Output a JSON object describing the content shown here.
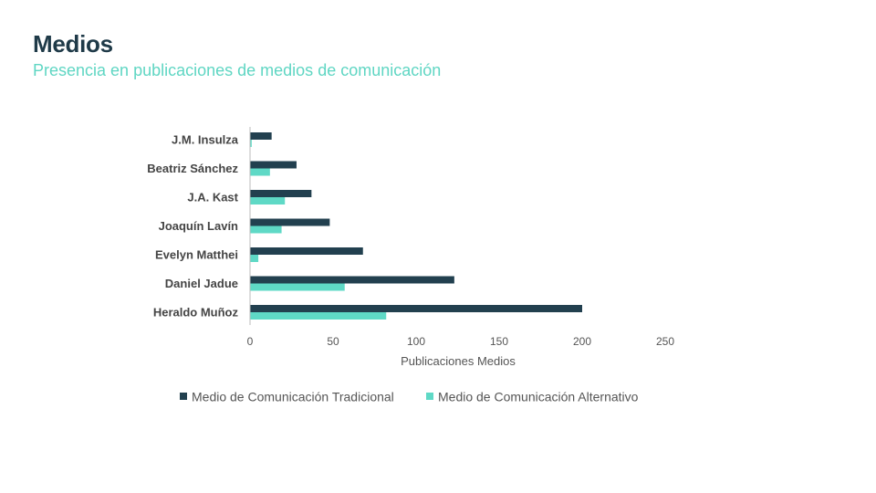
{
  "page": {
    "title": "Medios",
    "subtitle": "Presencia en publicaciones de medios de comunicación"
  },
  "colors": {
    "title": "#1f3a48",
    "subtitle": "#5fd6c3",
    "traditional": "#22404f",
    "alternative": "#5fd9c6"
  },
  "chart_data": {
    "type": "bar",
    "orientation": "horizontal",
    "categories": [
      "J.M. Insulza",
      "Beatriz Sánchez",
      "J.A. Kast",
      "Joaquín Lavín",
      "Evelyn Matthei",
      "Daniel Jadue",
      "Heraldo Muñoz"
    ],
    "series": [
      {
        "name": "Medio de Comunicación Tradicional",
        "values": [
          13,
          28,
          37,
          48,
          68,
          123,
          200
        ]
      },
      {
        "name": "Medio de Comunicación Alternativo",
        "values": [
          1,
          12,
          21,
          19,
          5,
          57,
          82
        ]
      }
    ],
    "xlabel": "Publicaciones  Medios",
    "ylabel": "",
    "xlim": [
      0,
      250
    ],
    "xticks": [
      "0",
      "50",
      "100",
      "150",
      "200",
      "250"
    ],
    "grid": false,
    "legend_position": "bottom"
  }
}
